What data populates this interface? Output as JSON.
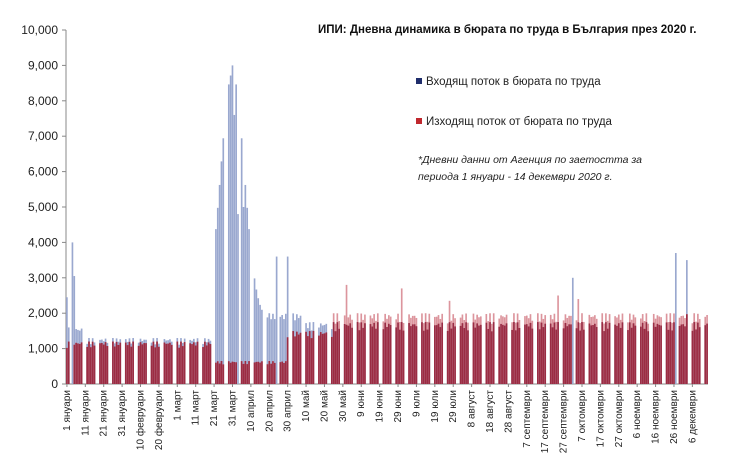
{
  "chart_data": {
    "type": "bar",
    "title": "ИПИ: Дневна динамика в бюрата по труда в България през 2020 г.",
    "note": "*Дневни данни от Агенция по заетостта за периода 1 януари - 14 декември 2020 г.",
    "ylim": [
      0,
      10000
    ],
    "yticks": [
      "0",
      "1,000",
      "2,000",
      "3,000",
      "4,000",
      "5,000",
      "6,000",
      "7,000",
      "8,000",
      "9,000",
      "10,000"
    ],
    "grid": false,
    "legend_position": "right",
    "x_tick_labels": [
      "1 януари",
      "11 януари",
      "21 януари",
      "31 януари",
      "10 февруари",
      "20 февруари",
      "1 март",
      "11 март",
      "21 март",
      "31 март",
      "10 април",
      "20 април",
      "30 април",
      "10 май",
      "20 май",
      "30 май",
      "9 юни",
      "19 юни",
      "29 юни",
      "9 юли",
      "19 юли",
      "29 юли",
      "8 август",
      "18 август",
      "28 август",
      "7 септември",
      "17 септември",
      "27 септември",
      "7 октомври",
      "17 октомври",
      "27 октомври",
      "6 ноември",
      "16 ноември",
      "26 ноември",
      "6 декември"
    ],
    "series": [
      {
        "name": "Входящ поток в бюрата по труда",
        "color": "#1f2d6b",
        "peaks": [
          {
            "x": "1 януари",
            "value": 2450
          },
          {
            "x": "4 януари",
            "value": 4000
          },
          {
            "x": "5 януари",
            "value": 3050
          },
          {
            "x": "31 март",
            "value": 9000
          },
          {
            "x": "1 април",
            "value": 7600
          },
          {
            "x": "3 април",
            "value": 4800
          },
          {
            "x": "6 април",
            "value": 5000
          },
          {
            "x": "24 април",
            "value": 3600
          },
          {
            "x": "30 април",
            "value": 3600
          },
          {
            "x": "2 октомври",
            "value": 3000
          },
          {
            "x": "27 ноември",
            "value": 3700
          },
          {
            "x": "3 декември",
            "value": 3500
          }
        ]
      },
      {
        "name": "Изходящ поток от бюрата по труда",
        "color": "#c0272d",
        "peaks": [
          {
            "x": "1 юни",
            "value": 2800
          },
          {
            "x": "1 юли",
            "value": 2700
          },
          {
            "x": "27 юли",
            "value": 2350
          },
          {
            "x": "24 септември",
            "value": 2500
          },
          {
            "x": "5 октомври",
            "value": 2400
          }
        ]
      }
    ]
  }
}
